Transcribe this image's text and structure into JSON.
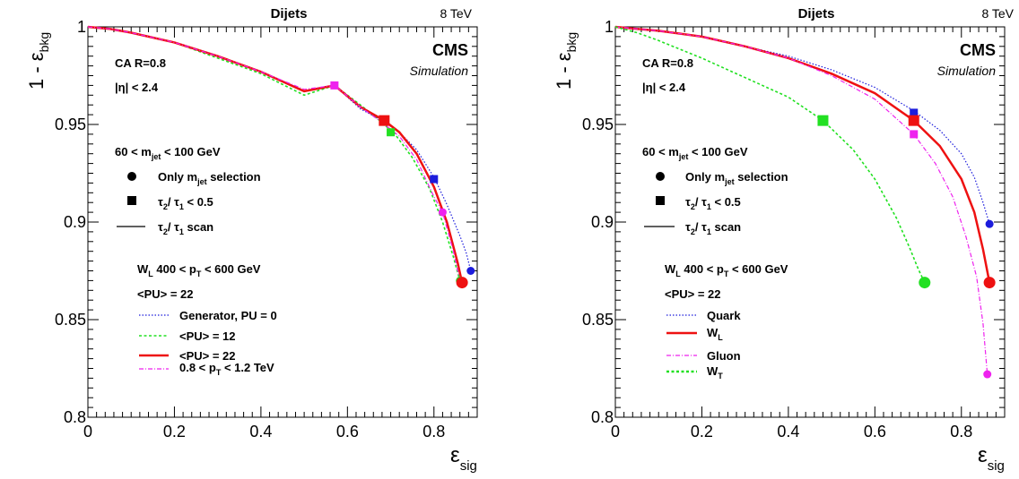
{
  "panels": [
    {
      "header_title": "Dijets",
      "energy": "8 TeV",
      "cms": "CMS",
      "simulation": "Simulation",
      "x_label": "ε",
      "x_label_sub": "sig",
      "y_label": "1 - ε",
      "y_label_sub": "bkg",
      "x_ticks": [
        "0",
        "0.2",
        "0.4",
        "0.6",
        "0.8"
      ],
      "y_ticks": [
        "0.8",
        "0.85",
        "0.9",
        "0.95",
        "1"
      ],
      "ann_algo": "CA R=0.8",
      "ann_eta": "|η| < 2.4",
      "ann_mass": "60 < m",
      "ann_mass_sub": "jet",
      "ann_mass_tail": " < 100 GeV",
      "key_circle": "Only m",
      "key_circle_sub": "jet",
      "key_circle_tail": " selection",
      "key_square_a": "τ",
      "key_square_b": "2",
      "key_square_c": "/ τ",
      "key_square_d": "1",
      "key_square_e": " < 0.5",
      "key_line_a": "τ",
      "key_line_b": "2",
      "key_line_c": "/ τ",
      "key_line_d": "1",
      "key_line_e": " scan",
      "sample_a": "W",
      "sample_b": "L",
      "sample_c": " 400 < p",
      "sample_d": "T",
      "sample_e": " < 600 GeV",
      "pu_note": "<PU> = 22",
      "legend": [
        {
          "label": "Generator, PU = 0",
          "sub": "",
          "tail": ""
        },
        {
          "label": "<PU> = 12",
          "sub": "",
          "tail": ""
        },
        {
          "label": "<PU> = 22",
          "sub": "",
          "tail": ""
        },
        {
          "label": "0.8 < p",
          "sub": "T",
          "tail": " < 1.2 TeV"
        }
      ]
    },
    {
      "header_title": "Dijets",
      "energy": "8 TeV",
      "cms": "CMS",
      "simulation": "Simulation",
      "x_label": "ε",
      "x_label_sub": "sig",
      "y_label": "1 - ε",
      "y_label_sub": "bkg",
      "x_ticks": [
        "0",
        "0.2",
        "0.4",
        "0.6",
        "0.8"
      ],
      "y_ticks": [
        "0.8",
        "0.85",
        "0.9",
        "0.95",
        "1"
      ],
      "ann_algo": "CA R=0.8",
      "ann_eta": "|η| < 2.4",
      "ann_mass": "60 < m",
      "ann_mass_sub": "jet",
      "ann_mass_tail": " < 100 GeV",
      "key_circle": "Only m",
      "key_circle_sub": "jet",
      "key_circle_tail": " selection",
      "key_square_a": "τ",
      "key_square_b": "2",
      "key_square_c": "/ τ",
      "key_square_d": "1",
      "key_square_e": " < 0.5",
      "key_line_a": "τ",
      "key_line_b": "2",
      "key_line_c": "/ τ",
      "key_line_d": "1",
      "key_line_e": " scan",
      "sample_a": "W",
      "sample_b": "L",
      "sample_c": " 400 < p",
      "sample_d": "T",
      "sample_e": " < 600 GeV",
      "pu_note": "<PU> = 22",
      "legend": [
        {
          "label": "Quark",
          "sub": "",
          "tail": ""
        },
        {
          "label": "W",
          "sub": "L",
          "tail": ""
        },
        {
          "label": "Gluon",
          "sub": "",
          "tail": ""
        },
        {
          "label": "W",
          "sub": "T",
          "tail": ""
        }
      ]
    }
  ],
  "chart_data": [
    {
      "type": "line",
      "title": "Dijets",
      "xlabel": "ε_sig",
      "ylabel": "1 - ε_bkg",
      "xlim": [
        0,
        0.9
      ],
      "ylim": [
        0.8,
        1.0
      ],
      "grid": false,
      "legend_position": "left-middle",
      "series": [
        {
          "name": "Generator, PU = 0",
          "color": "#1c1cdc",
          "dash": "dotted",
          "x": [
            0,
            0.05,
            0.1,
            0.2,
            0.3,
            0.4,
            0.5,
            0.57,
            0.63,
            0.68,
            0.72,
            0.76,
            0.8,
            0.83,
            0.86,
            0.875,
            0.885
          ],
          "y": [
            1.0,
            0.999,
            0.997,
            0.992,
            0.985,
            0.977,
            0.967,
            0.97,
            0.958,
            0.952,
            0.946,
            0.937,
            0.923,
            0.909,
            0.893,
            0.884,
            0.875
          ],
          "circle": [
            0.885,
            0.875
          ],
          "square": [
            0.8,
            0.922
          ]
        },
        {
          "name": "<PU> = 12",
          "color": "#22e022",
          "dash": "dashed",
          "x": [
            0,
            0.05,
            0.1,
            0.2,
            0.3,
            0.4,
            0.5,
            0.57,
            0.63,
            0.68,
            0.71,
            0.75,
            0.79,
            0.82,
            0.845,
            0.86
          ],
          "y": [
            1.0,
            0.999,
            0.997,
            0.992,
            0.984,
            0.976,
            0.965,
            0.97,
            0.96,
            0.951,
            0.945,
            0.933,
            0.917,
            0.9,
            0.882,
            0.87
          ],
          "circle": [
            0.86,
            0.87
          ],
          "square": [
            0.7,
            0.946
          ]
        },
        {
          "name": "<PU> = 22",
          "color": "#ee1111",
          "dash": "solid",
          "x": [
            0,
            0.05,
            0.1,
            0.2,
            0.3,
            0.4,
            0.5,
            0.57,
            0.63,
            0.685,
            0.72,
            0.76,
            0.8,
            0.83,
            0.855,
            0.865
          ],
          "y": [
            1.0,
            0.999,
            0.997,
            0.992,
            0.985,
            0.977,
            0.967,
            0.97,
            0.959,
            0.952,
            0.946,
            0.935,
            0.918,
            0.9,
            0.879,
            0.869
          ],
          "circle": [
            0.865,
            0.869
          ],
          "square": [
            0.685,
            0.952
          ]
        },
        {
          "name": "0.8 < pT < 1.2 TeV",
          "color": "#ee22ee",
          "dash": "dashdot",
          "x": [
            0,
            0.05,
            0.1,
            0.2,
            0.3,
            0.4,
            0.5,
            0.57,
            0.63,
            0.68,
            0.72,
            0.76,
            0.8,
            0.82,
            0.845,
            0.86
          ],
          "y": [
            1.0,
            0.999,
            0.997,
            0.992,
            0.985,
            0.977,
            0.968,
            0.97,
            0.959,
            0.951,
            0.944,
            0.932,
            0.913,
            0.905,
            0.885,
            0.87
          ],
          "circle": [
            0.82,
            0.905
          ],
          "square": [
            0.57,
            0.97
          ]
        }
      ]
    },
    {
      "type": "line",
      "title": "Dijets",
      "xlabel": "ε_sig",
      "ylabel": "1 - ε_bkg",
      "xlim": [
        0,
        0.9
      ],
      "ylim": [
        0.8,
        1.0
      ],
      "grid": false,
      "legend_position": "left-middle",
      "series": [
        {
          "name": "Quark",
          "color": "#1c1cdc",
          "dash": "dotted",
          "x": [
            0,
            0.05,
            0.1,
            0.2,
            0.3,
            0.4,
            0.5,
            0.6,
            0.69,
            0.75,
            0.8,
            0.83,
            0.85,
            0.865
          ],
          "y": [
            1.0,
            0.999,
            0.998,
            0.995,
            0.99,
            0.985,
            0.978,
            0.969,
            0.957,
            0.947,
            0.935,
            0.923,
            0.91,
            0.899
          ],
          "circle": [
            0.865,
            0.899
          ],
          "square": [
            0.69,
            0.956
          ]
        },
        {
          "name": "WL",
          "color": "#ee1111",
          "dash": "solid",
          "x": [
            0,
            0.05,
            0.1,
            0.2,
            0.3,
            0.4,
            0.5,
            0.6,
            0.69,
            0.75,
            0.8,
            0.83,
            0.85,
            0.865
          ],
          "y": [
            1.0,
            0.999,
            0.998,
            0.995,
            0.99,
            0.984,
            0.976,
            0.966,
            0.952,
            0.939,
            0.922,
            0.905,
            0.886,
            0.869
          ],
          "circle": [
            0.865,
            0.869
          ],
          "square": [
            0.69,
            0.952
          ]
        },
        {
          "name": "Gluon",
          "color": "#ee22ee",
          "dash": "dashdot",
          "x": [
            0,
            0.05,
            0.1,
            0.2,
            0.3,
            0.4,
            0.5,
            0.6,
            0.69,
            0.74,
            0.78,
            0.81,
            0.835,
            0.85,
            0.86
          ],
          "y": [
            1.0,
            0.999,
            0.998,
            0.995,
            0.99,
            0.984,
            0.975,
            0.963,
            0.945,
            0.93,
            0.913,
            0.893,
            0.872,
            0.848,
            0.822
          ],
          "circle": [
            0.86,
            0.822
          ],
          "square": [
            0.69,
            0.945
          ]
        },
        {
          "name": "WT",
          "color": "#22e022",
          "dash": "dashed",
          "x": [
            0,
            0.05,
            0.1,
            0.2,
            0.3,
            0.4,
            0.48,
            0.55,
            0.6,
            0.65,
            0.68,
            0.7,
            0.715
          ],
          "y": [
            1.0,
            0.997,
            0.993,
            0.984,
            0.974,
            0.964,
            0.952,
            0.937,
            0.922,
            0.902,
            0.887,
            0.876,
            0.869
          ],
          "circle": [
            0.715,
            0.869
          ],
          "square": [
            0.48,
            0.952
          ]
        }
      ]
    }
  ]
}
